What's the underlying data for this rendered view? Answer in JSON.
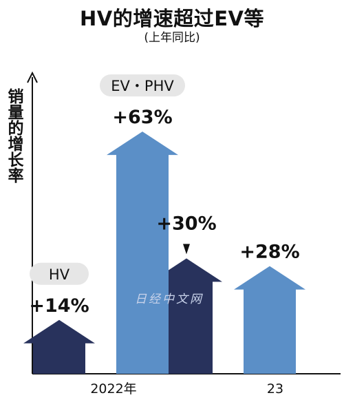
{
  "header": {
    "title": "HV的增速超过EV等",
    "subtitle": "(上年同比)"
  },
  "axis": {
    "ylabel": "销量的增长率"
  },
  "watermark": "日经中文网",
  "colors": {
    "HV": "#28325c",
    "EV・PHV": "#5b8fc7",
    "axis": "#111111",
    "pill": "#e6e6e6"
  },
  "chart_data": {
    "type": "bar",
    "title": "HV的增速超过EV等",
    "subtitle": "(上年同比)",
    "xlabel": "",
    "ylabel": "销量的增长率",
    "categories": [
      "2022年",
      "23"
    ],
    "series": [
      {
        "name": "HV",
        "values": [
          14,
          30
        ],
        "labels": [
          "+14%",
          "+30%"
        ]
      },
      {
        "name": "EV・PHV",
        "values": [
          63,
          28
        ],
        "labels": [
          "+63%",
          "+28%"
        ]
      }
    ],
    "ylim": [
      0,
      70
    ],
    "grid": false,
    "legend": "inline labels above 2022 bars"
  }
}
